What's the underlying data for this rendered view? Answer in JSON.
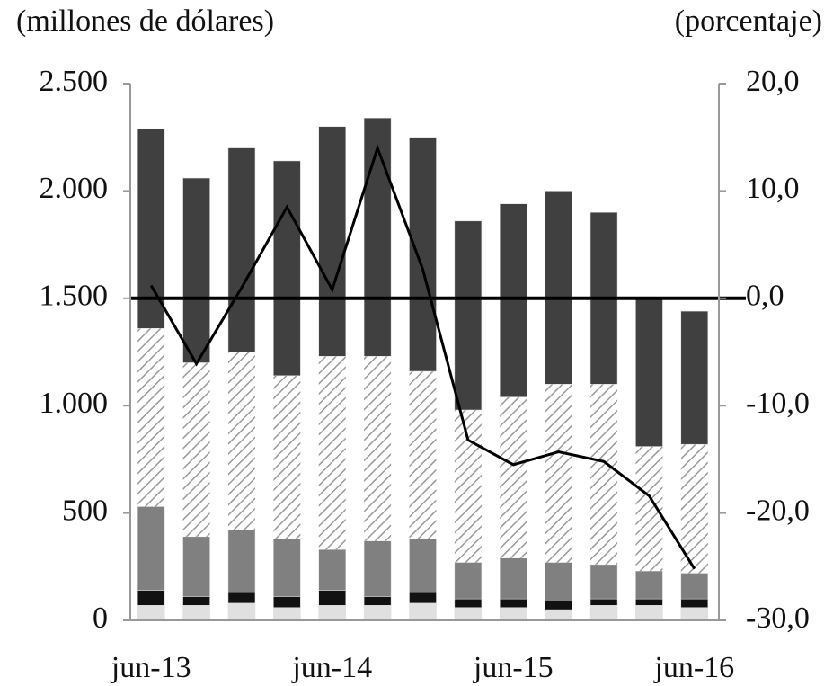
{
  "chart_data": {
    "type": "bar",
    "stacked": true,
    "y_label": "(millones de dólares)",
    "y2_label": "(porcentaje)",
    "categories": [
      "jun-13",
      null,
      null,
      null,
      "jun-14",
      null,
      null,
      null,
      "jun-15",
      null,
      null,
      null,
      "jun-16"
    ],
    "series": [
      {
        "color": "#e0e0e0",
        "values": [
          70,
          70,
          80,
          60,
          70,
          70,
          80,
          60,
          60,
          50,
          70,
          70,
          60
        ]
      },
      {
        "color": "#111111",
        "values": [
          70,
          40,
          50,
          50,
          70,
          40,
          50,
          40,
          40,
          40,
          30,
          30,
          40
        ]
      },
      {
        "color": "#808080",
        "values": [
          390,
          280,
          290,
          270,
          190,
          260,
          250,
          170,
          190,
          180,
          160,
          130,
          120
        ]
      },
      {
        "color": "#ffffff",
        "pattern": "hatch",
        "values": [
          830,
          810,
          830,
          760,
          900,
          860,
          780,
          710,
          750,
          830,
          840,
          580,
          600
        ]
      },
      {
        "color": "#404040",
        "values": [
          930,
          860,
          950,
          1000,
          1070,
          1110,
          1090,
          880,
          900,
          900,
          800,
          690,
          620
        ]
      },
      {
        "type": "line",
        "axis": "y2",
        "color": "#000000",
        "values": [
          1.2,
          -6.1,
          1.0,
          8.5,
          0.8,
          14.0,
          2.7,
          -13.2,
          -15.5,
          -14.3,
          -15.2,
          -18.4,
          -25.2
        ]
      }
    ],
    "ylim": [
      0,
      2500
    ],
    "yticks": [
      0,
      500,
      {
        "value": 1000,
        "label": "1.000"
      },
      {
        "value": 1500,
        "label": "1.500"
      },
      {
        "value": 2000,
        "label": "2.000"
      },
      {
        "value": 2500,
        "label": "2.500"
      }
    ],
    "y2lim": [
      -30,
      20
    ],
    "y2ticks": [
      {
        "value": -30,
        "label": "-30,0"
      },
      {
        "value": -20,
        "label": "-20,0"
      },
      {
        "value": -10,
        "label": "-10,0"
      },
      {
        "value": 0,
        "label": "0,0"
      },
      {
        "value": 10,
        "label": "10,0"
      },
      {
        "value": 20,
        "label": "20,0"
      }
    ]
  }
}
